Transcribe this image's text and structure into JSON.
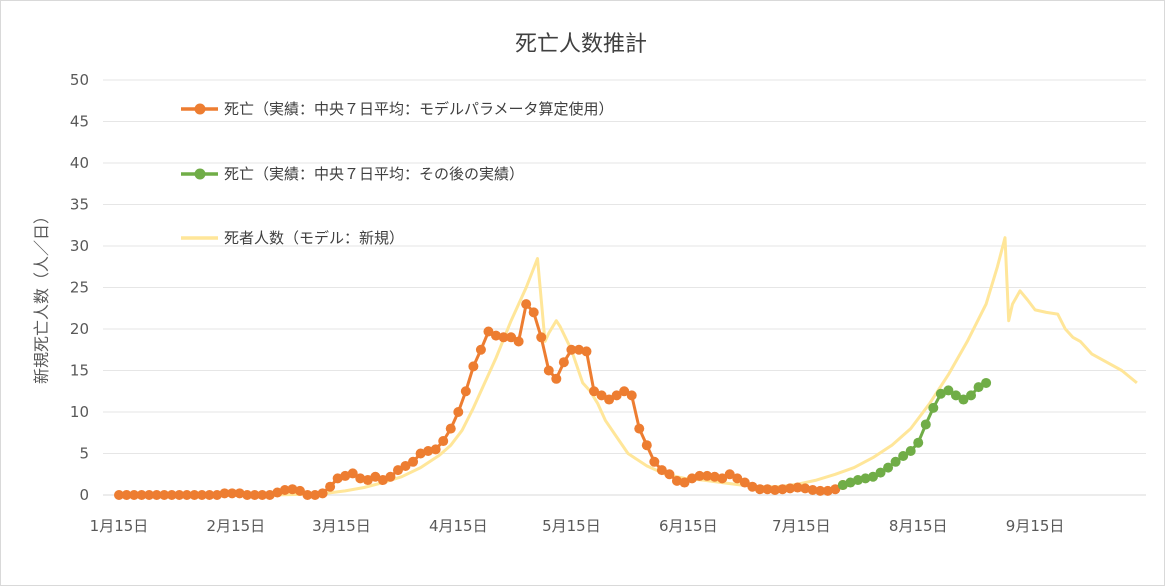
{
  "chart_data": {
    "type": "line",
    "title": "死亡人数推計",
    "xlabel": "",
    "ylabel": "新規死亡人数（人／日）",
    "ylim": [
      0,
      50
    ],
    "yticks": [
      0,
      5,
      10,
      15,
      20,
      25,
      30,
      35,
      40,
      45,
      50
    ],
    "x_tick_labels": [
      "1月15日",
      "2月15日",
      "3月15日",
      "4月15日",
      "5月15日",
      "6月15日",
      "7月15日",
      "8月15日",
      "9月15日"
    ],
    "x_tick_days": [
      0,
      31,
      59,
      90,
      120,
      151,
      181,
      212,
      243
    ],
    "xlim_days": [
      0,
      270
    ],
    "grid": true,
    "legend_position": "top-left inside",
    "series": [
      {
        "name": "死亡（実績：中央７日平均：モデルパラメータ算定使用）",
        "color": "#ED7D31",
        "marker": true,
        "x_days": [
          0,
          2,
          4,
          6,
          8,
          10,
          12,
          14,
          16,
          18,
          20,
          22,
          24,
          26,
          28,
          30,
          32,
          34,
          36,
          38,
          40,
          42,
          44,
          46,
          48,
          50,
          52,
          54,
          56,
          58,
          60,
          62,
          64,
          66,
          68,
          70,
          72,
          74,
          76,
          78,
          80,
          82,
          84,
          86,
          88,
          90,
          92,
          94,
          96,
          98,
          100,
          102,
          104,
          106,
          108,
          110,
          112,
          114,
          116,
          118,
          120,
          122,
          124,
          126,
          128,
          130,
          132,
          134,
          136,
          138,
          140,
          142,
          144,
          146,
          148,
          150,
          152,
          154,
          156,
          158,
          160,
          162,
          164,
          166,
          168,
          170,
          172,
          174,
          176,
          178,
          180,
          182,
          184,
          186,
          188,
          190,
          192
        ],
        "values": [
          0,
          0,
          0,
          0,
          0,
          0,
          0,
          0,
          0,
          0,
          0,
          0,
          0,
          0,
          0.2,
          0.2,
          0.2,
          0,
          0,
          0,
          0,
          0.3,
          0.6,
          0.7,
          0.5,
          0,
          0,
          0.2,
          1,
          2,
          2.3,
          2.6,
          2,
          1.8,
          2.2,
          1.8,
          2.2,
          3,
          3.5,
          4,
          5,
          5.3,
          5.5,
          6.5,
          8,
          10,
          12.5,
          15.5,
          17.5,
          19.7,
          19.2,
          19,
          19,
          18.5,
          23,
          22,
          19,
          15,
          14,
          16,
          17.5,
          17.5,
          17.3,
          12.5,
          12,
          11.5,
          12,
          12.5,
          12,
          8,
          6,
          4,
          3,
          2.5,
          1.7,
          1.5,
          2,
          2.3,
          2.3,
          2.2,
          2,
          2.5,
          2,
          1.5,
          1,
          0.7,
          0.7,
          0.6,
          0.7,
          0.8,
          0.9,
          0.8,
          0.6,
          0.5,
          0.5,
          0.7,
          1.2
        ]
      },
      {
        "name": "死亡（実績：中央７日平均：その後の実績）",
        "color": "#70AD47",
        "marker": true,
        "x_days": [
          192,
          194,
          196,
          198,
          200,
          202,
          204,
          206,
          208,
          210,
          212,
          214,
          216,
          218,
          220,
          222,
          224,
          226,
          228,
          230
        ],
        "values": [
          1.2,
          1.5,
          1.8,
          2,
          2.2,
          2.7,
          3.3,
          4,
          4.7,
          5.3,
          6.3,
          8.5,
          10.5,
          12.2,
          12.6,
          12,
          11.5,
          12,
          13,
          13.5
        ]
      },
      {
        "name": "死者人数（モデル：新規）",
        "color": "#FFE699",
        "marker": false,
        "x_days": [
          13,
          20,
          30,
          40,
          50,
          55,
          60,
          65,
          70,
          75,
          80,
          85,
          88,
          91,
          94,
          97,
          100,
          104,
          108,
          111,
          113,
          114,
          116,
          117,
          120,
          123,
          125,
          127,
          129,
          132,
          135,
          140,
          145,
          150,
          155,
          160,
          165,
          170,
          175,
          180,
          185,
          190,
          195,
          200,
          205,
          210,
          215,
          220,
          225,
          230,
          233,
          235,
          236,
          237,
          239,
          241,
          243,
          246,
          249,
          251,
          253,
          255,
          258,
          262,
          266,
          270
        ],
        "values": [
          0,
          0,
          0,
          0,
          0.1,
          0.2,
          0.5,
          0.9,
          1.5,
          2.2,
          3.3,
          4.8,
          6,
          7.8,
          10.5,
          13.5,
          16.5,
          21,
          25,
          28.5,
          18.5,
          19.5,
          21,
          20.3,
          17.5,
          13.5,
          12.5,
          11,
          9,
          7,
          5,
          3.5,
          2.5,
          2,
          1.8,
          1.5,
          1.2,
          1,
          1,
          1.3,
          1.8,
          2.5,
          3.3,
          4.5,
          6,
          8,
          11,
          14.5,
          18.5,
          23,
          27.5,
          31,
          21,
          23,
          24.6,
          23.5,
          22.3,
          22,
          21.8,
          20,
          19,
          18.5,
          17,
          16,
          15,
          13.5
        ]
      }
    ]
  }
}
